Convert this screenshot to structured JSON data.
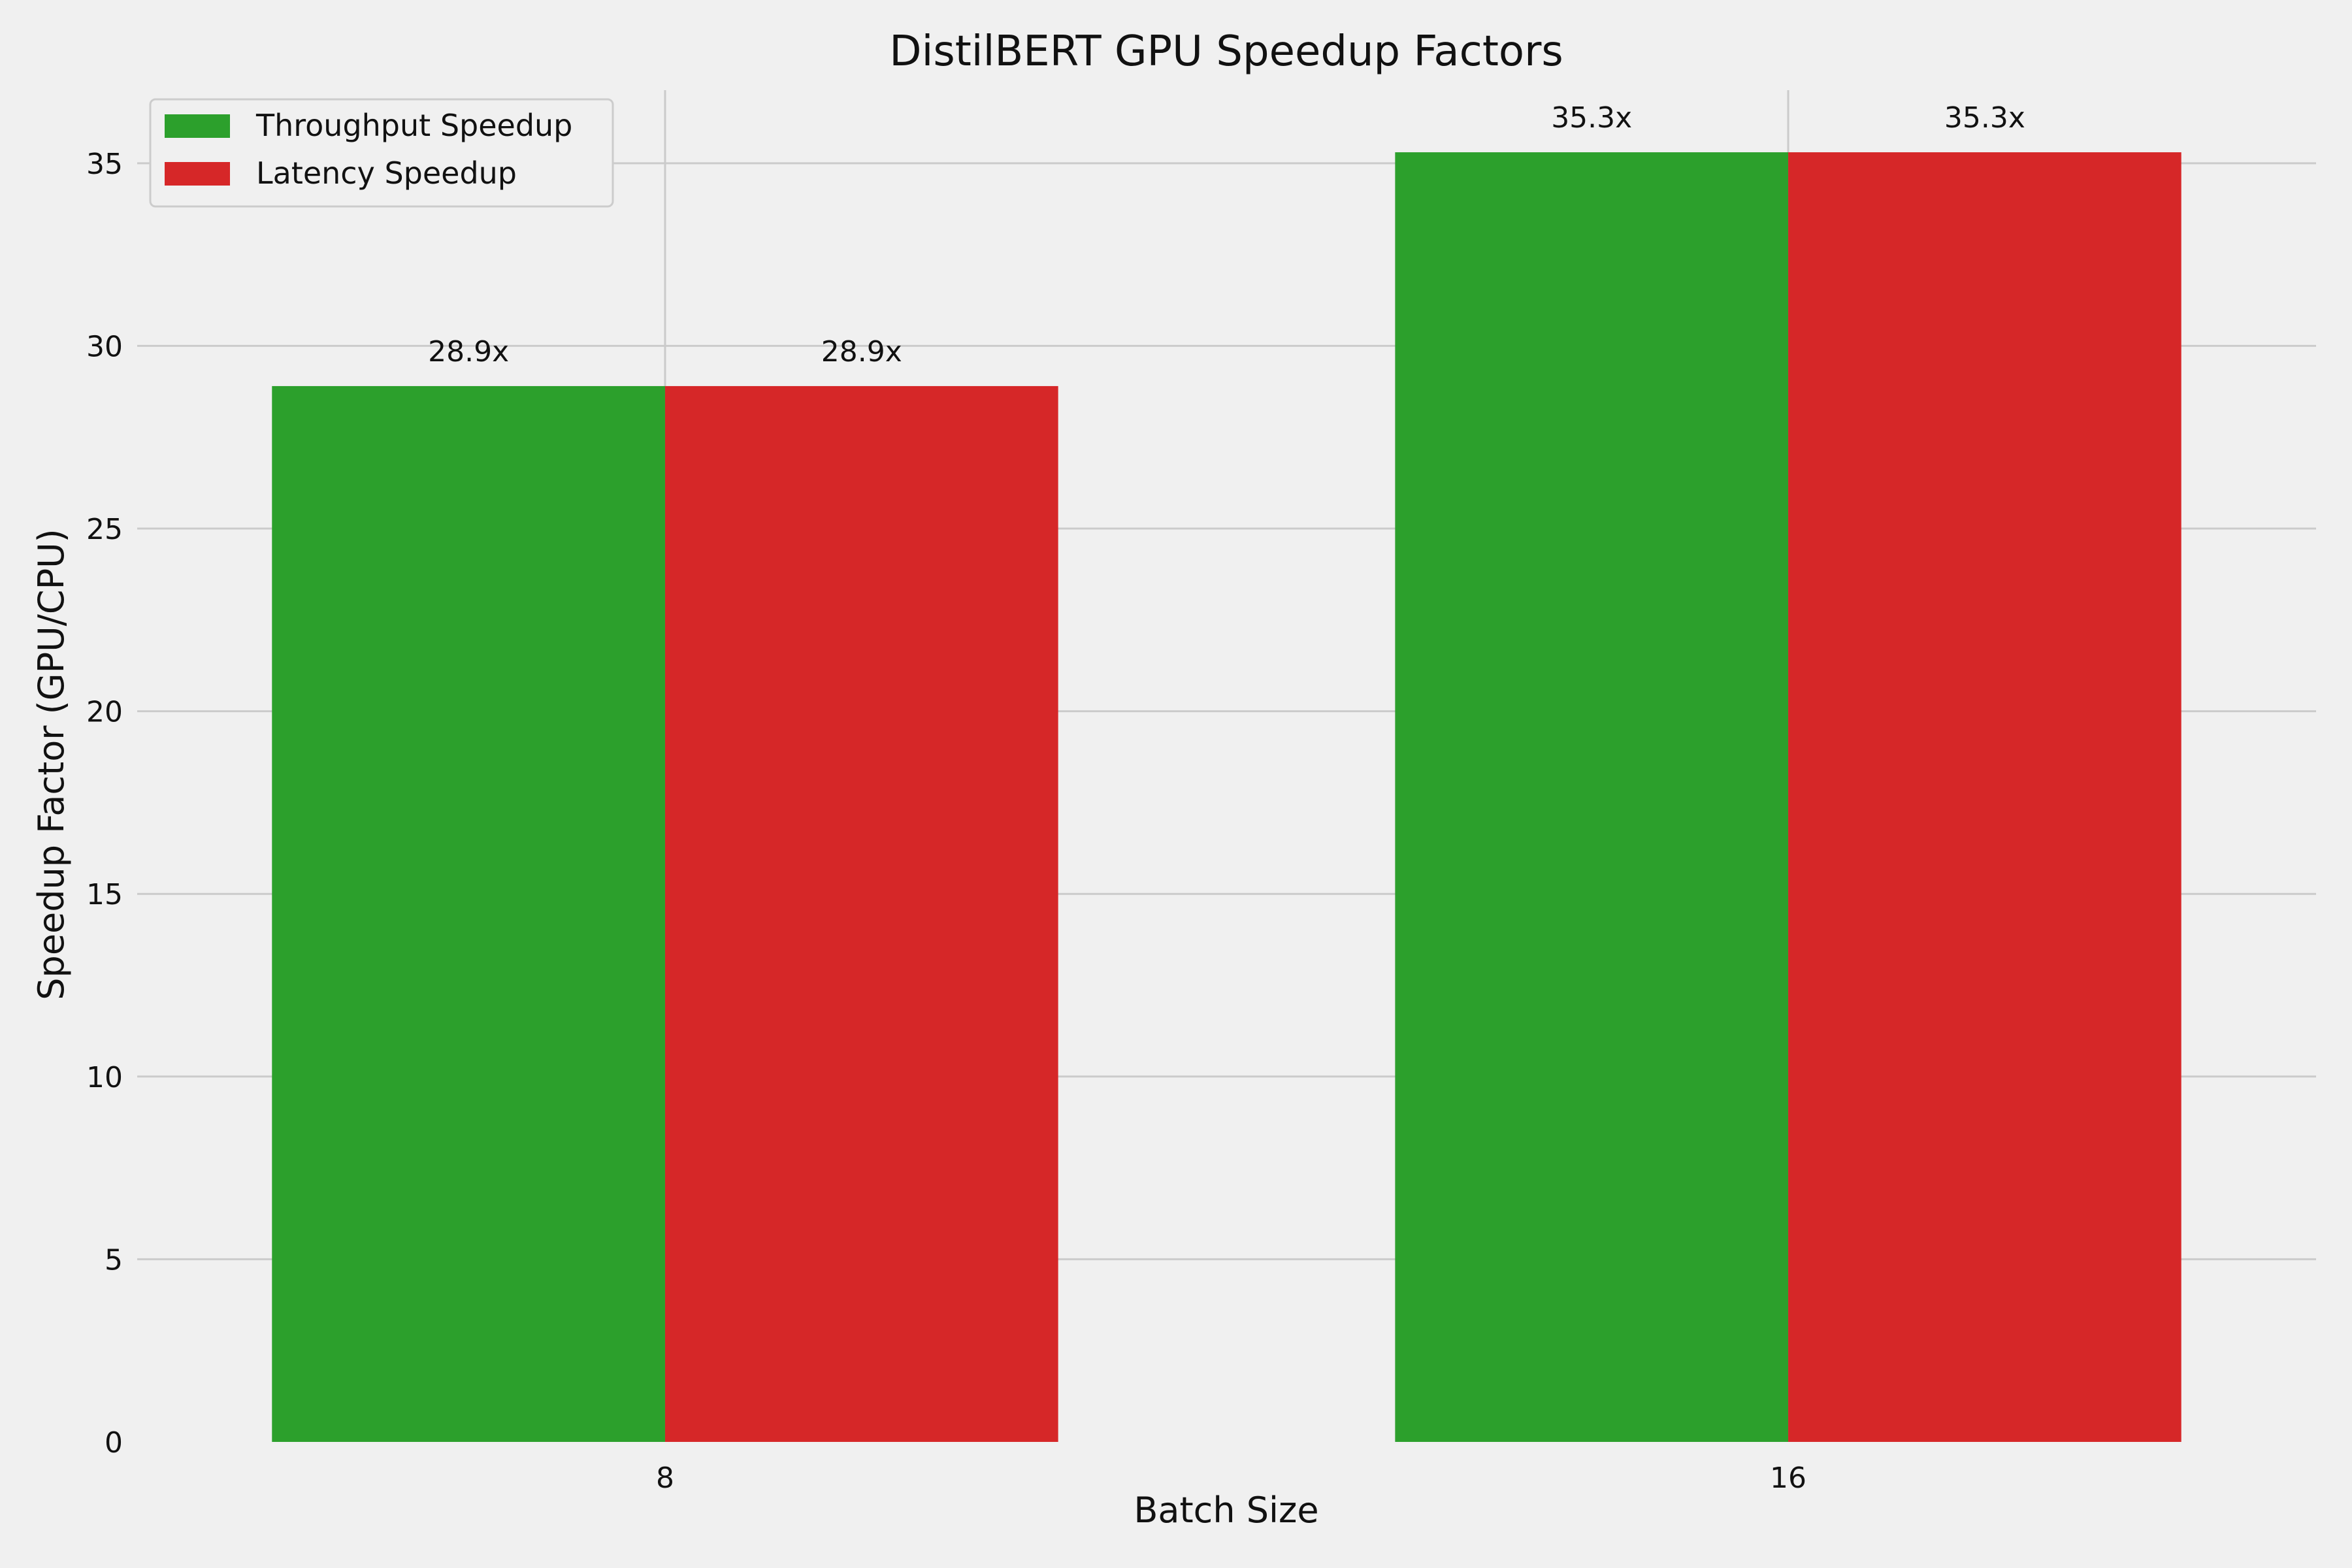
{
  "chart_data": {
    "type": "bar",
    "title": "DistilBERT GPU Speedup Factors",
    "xlabel": "Batch Size",
    "ylabel": "Speedup Factor (GPU/CPU)",
    "categories": [
      "8",
      "16"
    ],
    "series": [
      {
        "name": "Throughput Speedup",
        "values": [
          28.9,
          35.3
        ],
        "color": "#2ca02c",
        "labels": [
          "28.9x",
          "35.3x"
        ]
      },
      {
        "name": "Latency Speedup",
        "values": [
          28.9,
          35.3
        ],
        "color": "#d62728",
        "labels": [
          "28.9x",
          "35.3x"
        ]
      }
    ],
    "ylim": [
      0,
      37
    ],
    "yticks": [
      0,
      5,
      10,
      15,
      20,
      25,
      30,
      35
    ],
    "grid": true,
    "legend_position": "top-left",
    "background": "#f0f0f0",
    "grid_color": "#cbcbcb"
  }
}
